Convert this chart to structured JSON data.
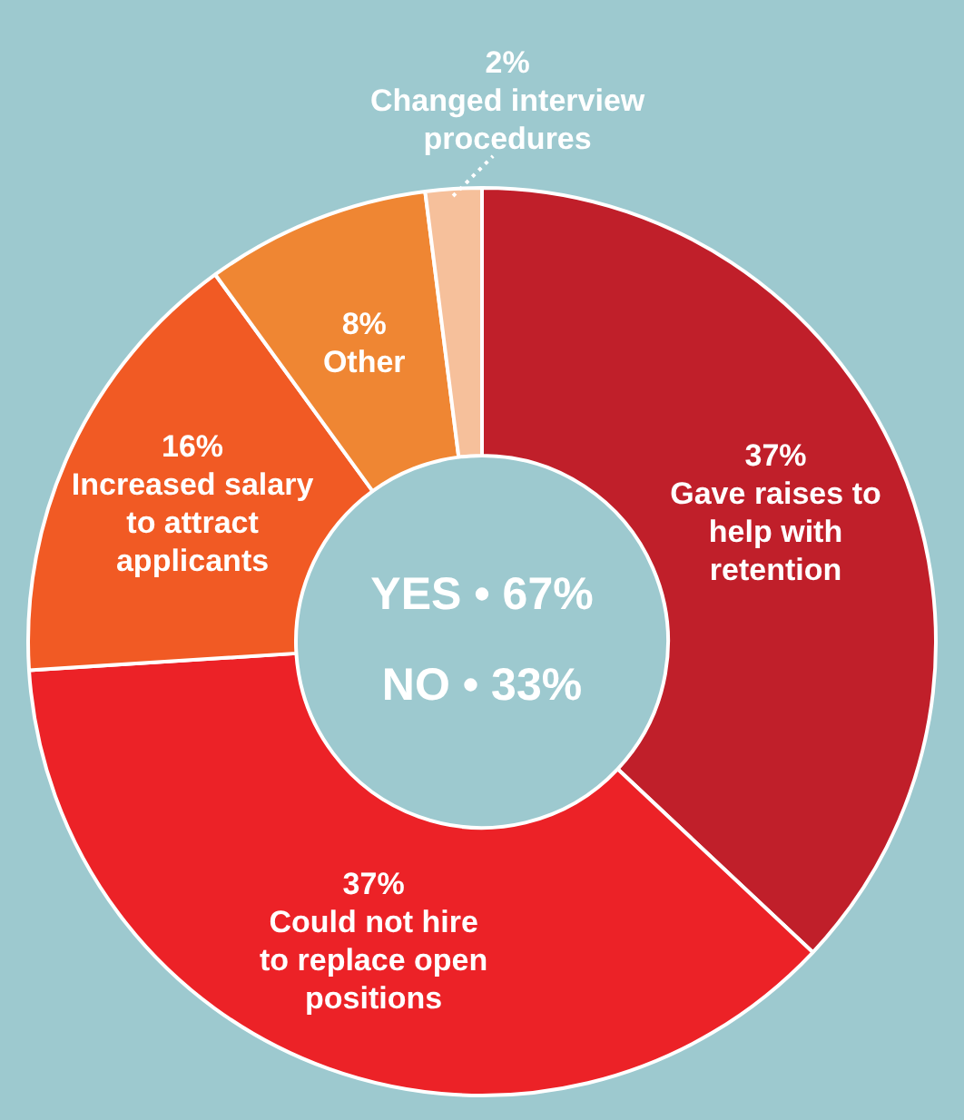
{
  "chart_data": {
    "type": "donut",
    "categories": [
      "Gave raises to help with retention",
      "Could not hire to replace open positions",
      "Increased salary to attract applicants",
      "Other",
      "Changed interview procedures"
    ],
    "values": [
      37,
      37,
      16,
      8,
      2
    ],
    "colors": [
      "#c01f2a",
      "#ec2227",
      "#f15a24",
      "#ef8633",
      "#f6c09b"
    ],
    "value_labels": [
      "37%",
      "37%",
      "16%",
      "8%",
      "2%"
    ],
    "annotations": [
      "YES • 67%",
      "NO • 33%"
    ],
    "legend": false
  }
}
